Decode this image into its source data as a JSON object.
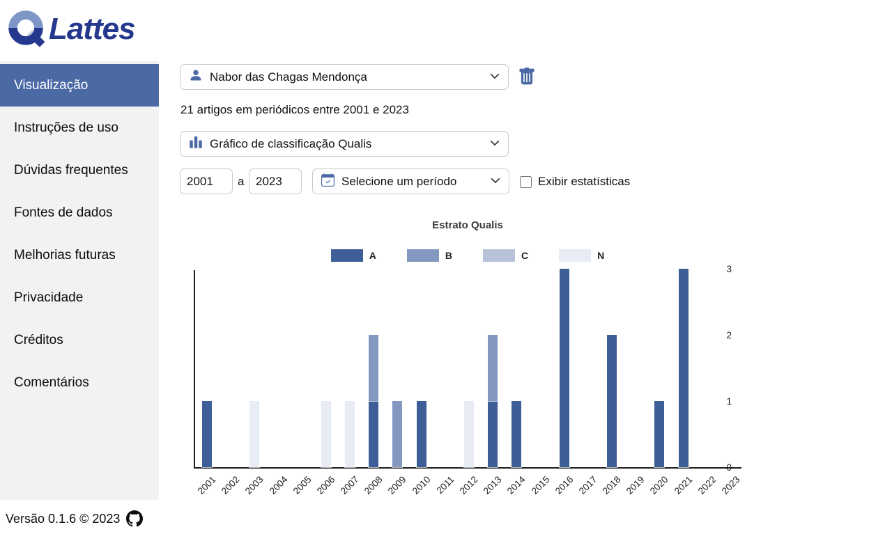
{
  "logo": {
    "text": "Lattes"
  },
  "sidebar": {
    "items": [
      {
        "label": "Visualização",
        "active": true
      },
      {
        "label": "Instruções de uso",
        "active": false
      },
      {
        "label": "Dúvidas frequentes",
        "active": false
      },
      {
        "label": "Fontes de dados",
        "active": false
      },
      {
        "label": "Melhorias futuras",
        "active": false
      },
      {
        "label": "Privacidade",
        "active": false
      },
      {
        "label": "Créditos",
        "active": false
      },
      {
        "label": "Comentários",
        "active": false
      }
    ]
  },
  "main": {
    "author_select": {
      "value": "Nabor das Chagas Mendonça"
    },
    "summary": "21 artigos em periódicos entre 2001 e 2023",
    "view_select": {
      "value": "Gráfico de classificação Qualis"
    },
    "year_from": "2001",
    "range_separator": "a",
    "year_to": "2023",
    "period_select": {
      "value": "Selecione um período"
    },
    "stats_checkbox": {
      "label": "Exibir estatísticas",
      "checked": false
    }
  },
  "chart_data": {
    "type": "bar",
    "stacked": true,
    "title": "Estrato Qualis",
    "legend_position": "top",
    "grid": false,
    "x_label_rotation": -45,
    "ylim": [
      0,
      3
    ],
    "yticks": [
      0,
      1,
      2,
      3
    ],
    "categories": [
      2001,
      2002,
      2003,
      2004,
      2005,
      2006,
      2007,
      2008,
      2009,
      2010,
      2011,
      2012,
      2013,
      2014,
      2015,
      2016,
      2017,
      2018,
      2019,
      2020,
      2021,
      2022,
      2023
    ],
    "series": [
      {
        "name": "A",
        "color": "#3d5e96",
        "values": [
          1,
          0,
          0,
          0,
          0,
          0,
          0,
          1,
          0,
          1,
          0,
          0,
          1,
          1,
          0,
          3,
          0,
          2,
          0,
          1,
          3,
          0,
          0
        ]
      },
      {
        "name": "B",
        "color": "#8497c1",
        "values": [
          0,
          0,
          0,
          0,
          0,
          0,
          0,
          1,
          1,
          0,
          0,
          0,
          1,
          0,
          0,
          0,
          0,
          0,
          0,
          0,
          0,
          0,
          0
        ]
      },
      {
        "name": "C",
        "color": "#b8c2d9",
        "values": [
          0,
          0,
          0,
          0,
          0,
          0,
          0,
          0,
          0,
          0,
          0,
          0,
          0,
          0,
          0,
          0,
          0,
          0,
          0,
          0,
          0,
          0,
          0
        ]
      },
      {
        "name": "N",
        "color": "#e8ecf5",
        "values": [
          0,
          0,
          1,
          0,
          0,
          1,
          1,
          0,
          0,
          0,
          0,
          1,
          0,
          0,
          0,
          0,
          0,
          0,
          0,
          0,
          0,
          0,
          0
        ]
      }
    ]
  },
  "footer": {
    "version_text": "Versão 0.1.6 © 2023"
  }
}
